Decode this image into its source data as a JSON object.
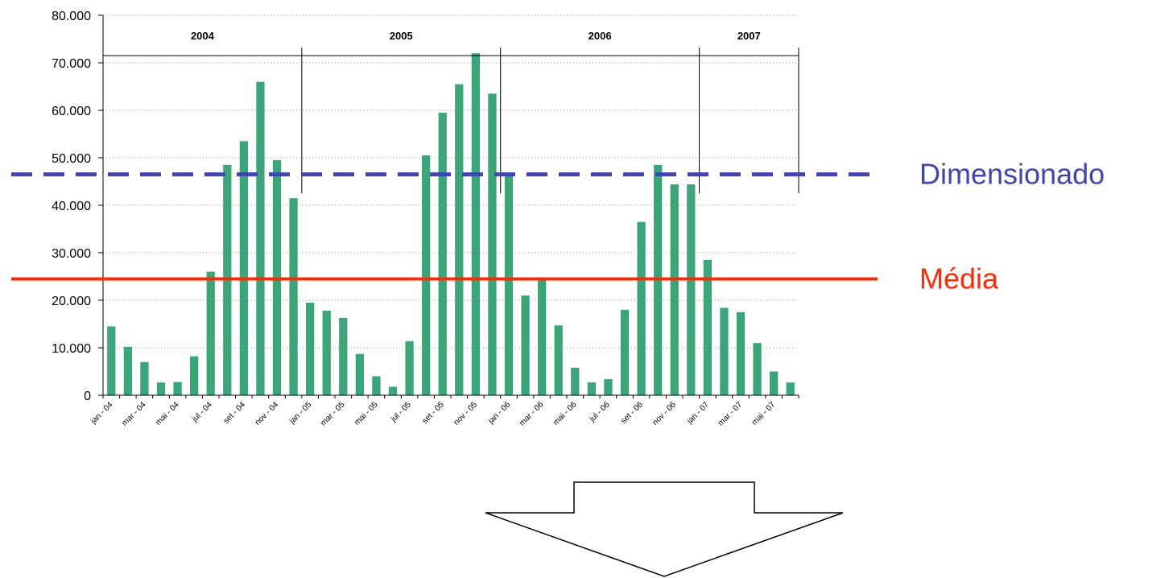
{
  "chart_data": {
    "type": "bar",
    "categories": [
      "jan - 04",
      "fev - 04",
      "mar - 04",
      "abr - 04",
      "mai - 04",
      "jun - 04",
      "jul - 04",
      "ago - 04",
      "set - 04",
      "out - 04",
      "nov - 04",
      "dez - 04",
      "jan - 05",
      "fev - 05",
      "mar - 05",
      "abr - 05",
      "mai - 05",
      "jun - 05",
      "jul - 05",
      "ago - 05",
      "set - 05",
      "out - 05",
      "nov - 05",
      "dez - 05",
      "jan - 06",
      "fev - 06",
      "mar - 06",
      "abr - 06",
      "mai - 06",
      "jun - 06",
      "jul - 06",
      "ago - 06",
      "set - 06",
      "out - 06",
      "nov - 06",
      "dez - 06",
      "jan - 07",
      "fev - 07",
      "mar - 07",
      "abr - 07",
      "mai - 07",
      "jun - 07"
    ],
    "visible_x_labels": [
      "jan - 04",
      "mar - 04",
      "mai - 04",
      "jul - 04",
      "set - 04",
      "nov - 04",
      "jan - 05",
      "mar - 05",
      "mai - 05",
      "jul - 05",
      "set - 05",
      "nov - 05",
      "jan - 06",
      "mar - 06",
      "mai - 06",
      "jul - 06",
      "set - 06",
      "nov - 06",
      "jan - 07",
      "mar - 07",
      "mai - 07"
    ],
    "values": [
      14500,
      10200,
      7000,
      2700,
      2800,
      8200,
      26000,
      48500,
      53500,
      66000,
      49500,
      41500,
      19500,
      17800,
      16300,
      8700,
      4000,
      1800,
      11400,
      50500,
      59500,
      65500,
      72000,
      63500,
      46500,
      21000,
      24500,
      14700,
      5800,
      2700,
      3400,
      18000,
      36500,
      48500,
      44400,
      44400,
      28500,
      18400,
      17500,
      11000,
      5000,
      2700
    ],
    "yticks": [
      "0",
      "10.000",
      "20.000",
      "30.000",
      "40.000",
      "50.000",
      "60.000",
      "70.000",
      "80.000"
    ],
    "ylim": [
      0,
      80000
    ],
    "grid": "horizontal dotted",
    "bar_color": "#3da57a",
    "years": [
      {
        "label": "2004",
        "start_index": 0,
        "end_index": 11
      },
      {
        "label": "2005",
        "start_index": 12,
        "end_index": 23
      },
      {
        "label": "2006",
        "start_index": 24,
        "end_index": 35
      },
      {
        "label": "2007",
        "start_index": 36,
        "end_index": 41
      }
    ],
    "reference_lines": [
      {
        "label": "Dimensionado",
        "value": 46500,
        "color": "#4146a8",
        "style": "dashed"
      },
      {
        "label": "Média",
        "value": 24500,
        "color": "#ff2a0a",
        "style": "solid"
      }
    ]
  }
}
